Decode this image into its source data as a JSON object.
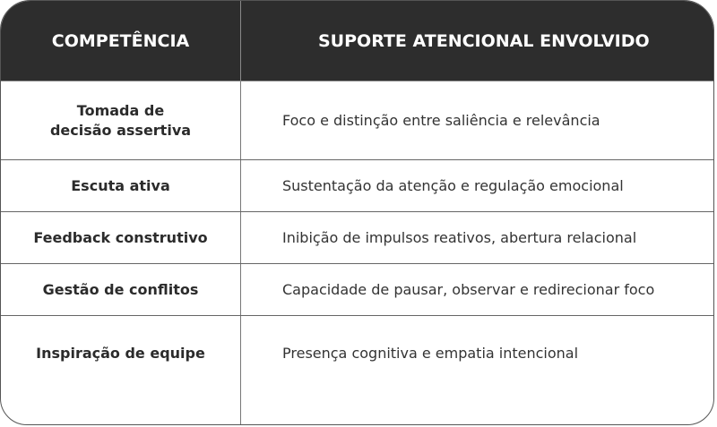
{
  "headers": {
    "competencia": "COMPETÊNCIA",
    "suporte": "SUPORTE ATENCIONAL ENVOLVIDO"
  },
  "rows": [
    {
      "competencia_l1": "Tomada de",
      "competencia_l2": "decisão assertiva",
      "suporte": "Foco e distinção entre saliência e relevância"
    },
    {
      "competencia": "Escuta ativa",
      "suporte": "Sustentação da atenção e regulação emocional"
    },
    {
      "competencia": "Feedback construtivo",
      "suporte": "Inibição de impulsos reativos, abertura relacional"
    },
    {
      "competencia": "Gestão de conflitos",
      "suporte": "Capacidade de pausar, observar e redirecionar foco"
    },
    {
      "competencia": "Inspiração de equipe",
      "suporte": "Presença cognitiva e empatia intencional"
    }
  ],
  "colors": {
    "header_bg": "#2d2d2d",
    "header_text": "#ffffff",
    "border": "#555555"
  }
}
